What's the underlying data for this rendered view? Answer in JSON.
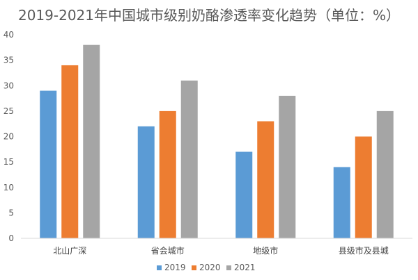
{
  "chart_data": {
    "type": "bar",
    "title": "2019-2021年中国城市级别奶酪渗透率变化趋势（单位：%）",
    "xlabel": "",
    "ylabel": "",
    "categories": [
      "北山广深",
      "省会城市",
      "地级市",
      "县级市及县城"
    ],
    "series": [
      {
        "name": "2019",
        "color": "#5B9BD5",
        "values": [
          29,
          22,
          17,
          14
        ]
      },
      {
        "name": "2020",
        "color": "#ED7D31",
        "values": [
          34,
          25,
          23,
          20
        ]
      },
      {
        "name": "2021",
        "color": "#A5A5A5",
        "values": [
          38,
          31,
          28,
          25
        ]
      }
    ],
    "ylim": [
      0,
      40
    ],
    "yticks": [
      0,
      5,
      10,
      15,
      20,
      25,
      30,
      35,
      40
    ],
    "grid": false,
    "legend": "bottom-center"
  }
}
